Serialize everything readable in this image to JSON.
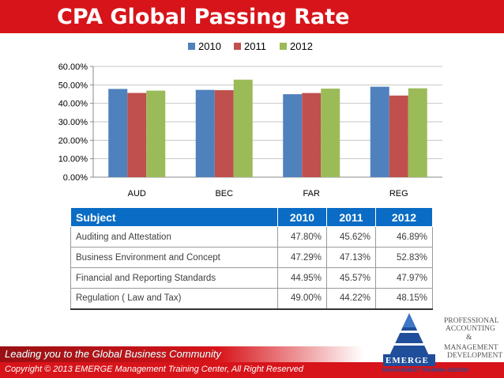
{
  "slide": {
    "title": "CPA Global Passing Rate",
    "slogan": "Leading you to the Global Business Community",
    "copyright": "Copyright © 2013 EMERGE Management Training Center, All Right Reserved"
  },
  "colors": {
    "title_bar": "#d7141a",
    "table_header": "#0a6cc4",
    "series_2010": "#4f81bd",
    "series_2011": "#c0504d",
    "series_2012": "#9bbb59"
  },
  "chart_data": {
    "type": "bar",
    "categories": [
      "AUD",
      "BEC",
      "FAR",
      "REG"
    ],
    "series": [
      {
        "name": "2010",
        "values": [
          47.8,
          47.29,
          44.95,
          49.0
        ],
        "color": "#4f81bd"
      },
      {
        "name": "2011",
        "values": [
          45.62,
          47.13,
          45.57,
          44.22
        ],
        "color": "#c0504d"
      },
      {
        "name": "2012",
        "values": [
          46.89,
          52.83,
          47.97,
          48.15
        ],
        "color": "#9bbb59"
      }
    ],
    "ylim": [
      0,
      60
    ],
    "yticks": [
      "0.00%",
      "10.00%",
      "20.00%",
      "30.00%",
      "40.00%",
      "50.00%",
      "60.00%"
    ],
    "grid": true,
    "legend": "top-center"
  },
  "table": {
    "headers": [
      "Subject",
      "2010",
      "2011",
      "2012"
    ],
    "rows": [
      [
        "Auditing and Attestation",
        "47.80%",
        "45.62%",
        "46.89%"
      ],
      [
        "Business Environment and Concept",
        "47.29%",
        "47.13%",
        "52.83%"
      ],
      [
        "Financial and Reporting Standards",
        "44.95%",
        "45.57%",
        "47.97%"
      ],
      [
        "Regulation ( Law and Tax)",
        "49.00%",
        "44.22%",
        "48.15%"
      ]
    ]
  },
  "logo": {
    "brand": "EMERGE",
    "subtitle": "MANAGEMENT TRAINING CENTER",
    "tagline_lines": [
      "PROFESSIONAL",
      "ACCOUNTING",
      "&",
      "MANAGEMENT",
      "DEVELOPMENT"
    ]
  }
}
